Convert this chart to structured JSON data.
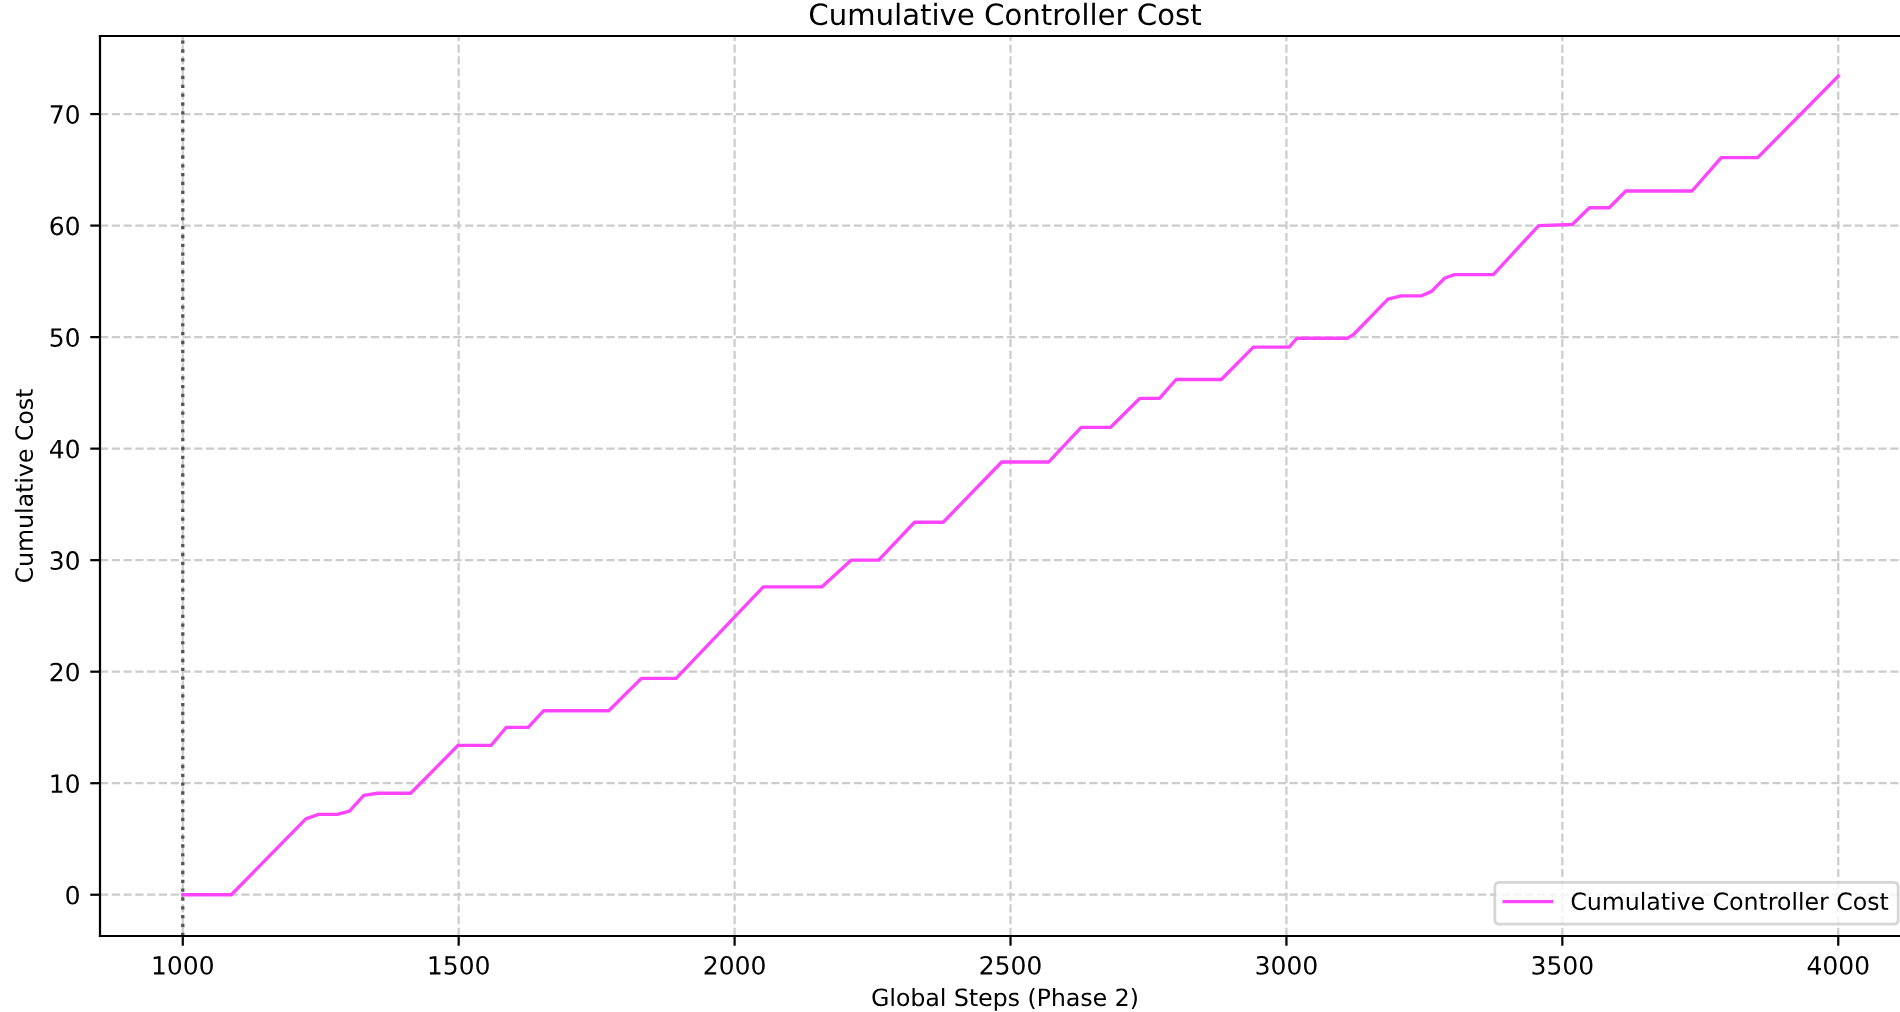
{
  "chart_data": {
    "type": "line",
    "title": "Cumulative Controller Cost",
    "xlabel": "Global Steps (Phase 2)",
    "ylabel": "Cumulative Cost",
    "series": [
      {
        "name": "Cumulative Controller Cost",
        "color": "#ff44ff",
        "x": [
          1000,
          1088,
          1223,
          1246,
          1280,
          1302,
          1328,
          1353,
          1413,
          1499,
          1559,
          1586,
          1626,
          1654,
          1772,
          1831,
          1894,
          2052,
          2158,
          2211,
          2261,
          2326,
          2378,
          2484,
          2569,
          2628,
          2681,
          2734,
          2770,
          2800,
          2882,
          2940,
          3005,
          3019,
          3111,
          3123,
          3184,
          3208,
          3245,
          3263,
          3287,
          3305,
          3375,
          3457,
          3518,
          3549,
          3585,
          3615,
          3735,
          3788,
          3854,
          4000
        ],
        "values": [
          0,
          0,
          6.8,
          7.2,
          7.2,
          7.5,
          8.9,
          9.1,
          9.1,
          13.4,
          13.4,
          15.0,
          15.0,
          16.5,
          16.5,
          19.4,
          19.4,
          27.6,
          27.6,
          30.0,
          30.0,
          33.4,
          33.4,
          38.8,
          38.8,
          41.9,
          41.9,
          44.5,
          44.5,
          46.2,
          46.2,
          49.1,
          49.1,
          49.9,
          49.9,
          50.3,
          53.4,
          53.7,
          53.7,
          54.1,
          55.3,
          55.6,
          55.6,
          60.0,
          60.1,
          61.6,
          61.6,
          63.1,
          63.1,
          66.1,
          66.1,
          73.4
        ]
      }
    ],
    "ref_lines": [
      {
        "axis": "x",
        "value": 1000,
        "color": "#555555",
        "line_style": "dotted"
      }
    ],
    "xlim": [
      850,
      4130
    ],
    "ylim": [
      -3.7,
      77.0
    ],
    "xticks": [
      1000,
      1500,
      2000,
      2500,
      3000,
      3500,
      4000
    ],
    "yticks": [
      0,
      10,
      20,
      30,
      40,
      50,
      60,
      70
    ],
    "grid": true,
    "legend": "lower right",
    "line_style": "solid",
    "marker": "none"
  }
}
